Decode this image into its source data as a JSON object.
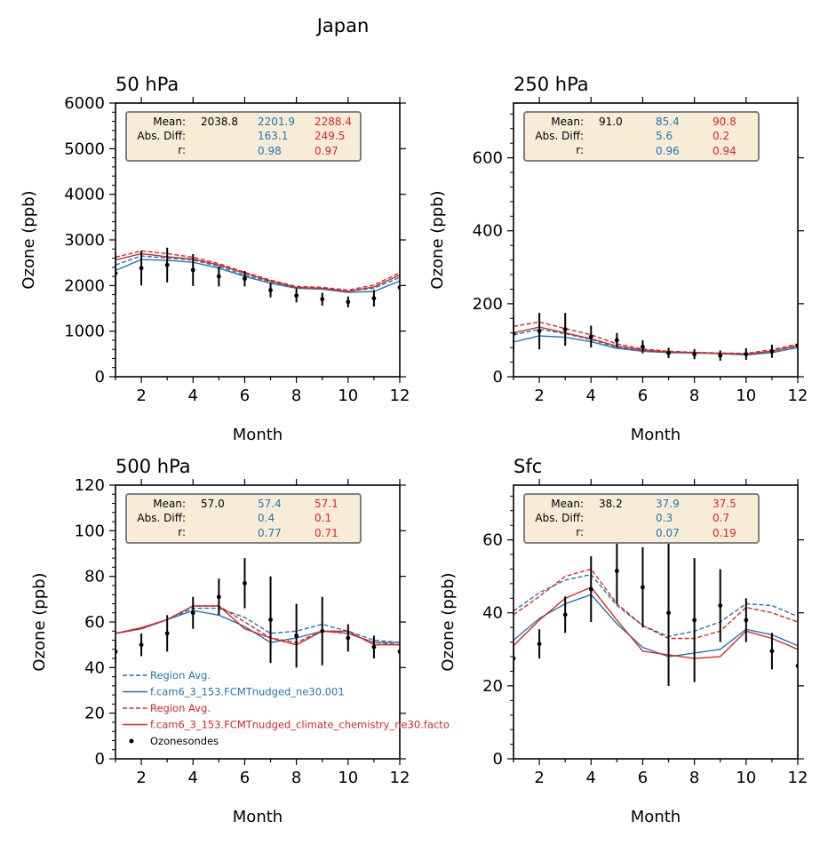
{
  "figure": {
    "suptitle": "Japan",
    "colors": {
      "obs": "#000000",
      "model1": "#1f77b4",
      "model2": "#d62728",
      "stats_box_bg": "#f8ecd7",
      "stats_box_edge": "#808080"
    }
  },
  "chart_data": [
    {
      "type": "line",
      "title": "50 hPa",
      "xlabel": "Month",
      "ylabel": "Ozone (ppb)",
      "xlim": [
        1,
        12
      ],
      "ylim": [
        0,
        6000
      ],
      "xticks": [
        2,
        4,
        6,
        8,
        10,
        12
      ],
      "yticks": [
        0,
        1000,
        2000,
        3000,
        4000,
        5000,
        6000
      ],
      "x": [
        1,
        2,
        3,
        4,
        5,
        6,
        7,
        8,
        9,
        10,
        11,
        12
      ],
      "observations": {
        "name": "Ozonesondes",
        "values": [
          2270,
          2380,
          2450,
          2340,
          2200,
          2150,
          1900,
          1780,
          1700,
          1640,
          1720,
          1960
        ],
        "errors": [
          450,
          380,
          380,
          350,
          220,
          170,
          160,
          150,
          140,
          120,
          180,
          0
        ]
      },
      "series": [
        {
          "name": "Region Avg.",
          "model": "model1",
          "style": "dashed",
          "values": [
            2450,
            2650,
            2600,
            2560,
            2420,
            2230,
            2080,
            1960,
            1940,
            1880,
            1940,
            2180
          ]
        },
        {
          "name": "f.cam6_3_153.FCMTnudged_ne30.001",
          "model": "model1",
          "style": "solid",
          "values": [
            2330,
            2570,
            2550,
            2510,
            2380,
            2200,
            2050,
            1940,
            1920,
            1850,
            1870,
            2100
          ]
        },
        {
          "name": "Region Avg.",
          "model": "model2",
          "style": "dashed",
          "values": [
            2620,
            2760,
            2700,
            2620,
            2480,
            2290,
            2120,
            1980,
            1960,
            1900,
            2010,
            2280
          ]
        },
        {
          "name": "f.cam6_3_153.FCMTnudged_climate_chemistry_ne30.facto",
          "model": "model2",
          "style": "solid",
          "values": [
            2560,
            2700,
            2630,
            2580,
            2450,
            2270,
            2100,
            1960,
            1940,
            1870,
            1970,
            2230
          ]
        }
      ],
      "stats": {
        "labels": [
          "Mean:",
          "Abs. Diff:",
          "r:"
        ],
        "obs": [
          "2038.8",
          "",
          ""
        ],
        "model1": [
          "2201.9",
          "163.1",
          "0.98"
        ],
        "model2": [
          "2288.4",
          "249.5",
          "0.97"
        ]
      },
      "legend": null
    },
    {
      "type": "line",
      "title": "250 hPa",
      "xlabel": "Month",
      "ylabel": "Ozone (ppb)",
      "xlim": [
        1,
        12
      ],
      "ylim": [
        0,
        750
      ],
      "xticks": [
        2,
        4,
        6,
        8,
        10,
        12
      ],
      "yticks": [
        0,
        200,
        400,
        600
      ],
      "x": [
        1,
        2,
        3,
        4,
        5,
        6,
        7,
        8,
        9,
        10,
        11,
        12
      ],
      "observations": {
        "name": "Ozonesondes",
        "values": [
          118,
          125,
          130,
          110,
          100,
          82,
          65,
          62,
          58,
          62,
          70,
          85
        ],
        "errors": [
          50,
          50,
          45,
          30,
          20,
          18,
          14,
          14,
          14,
          16,
          18,
          0
        ]
      },
      "series": [
        {
          "name": "Region Avg.",
          "model": "model1",
          "style": "dashed",
          "values": [
            115,
            130,
            118,
            102,
            80,
            72,
            68,
            66,
            64,
            62,
            70,
            84
          ]
        },
        {
          "name": "f.cam6_3_153.FCMTnudged_ne30.001",
          "model": "model1",
          "style": "solid",
          "values": [
            95,
            112,
            108,
            96,
            78,
            70,
            66,
            65,
            63,
            60,
            66,
            80
          ]
        },
        {
          "name": "Region Avg.",
          "model": "model2",
          "style": "dashed",
          "values": [
            138,
            150,
            132,
            115,
            90,
            76,
            70,
            67,
            65,
            64,
            74,
            90
          ]
        },
        {
          "name": "f.cam6_3_153.FCMTnudged_climate_chemistry_ne30.facto",
          "model": "model2",
          "style": "solid",
          "values": [
            120,
            136,
            120,
            104,
            84,
            73,
            68,
            66,
            64,
            62,
            70,
            86
          ]
        }
      ],
      "stats": {
        "labels": [
          "Mean:",
          "Abs. Diff:",
          "r:"
        ],
        "obs": [
          "91.0",
          "",
          ""
        ],
        "model1": [
          "85.4",
          "5.6",
          "0.96"
        ],
        "model2": [
          "90.8",
          "0.2",
          "0.94"
        ]
      },
      "legend": null
    },
    {
      "type": "line",
      "title": "500 hPa",
      "xlabel": "Month",
      "ylabel": "Ozone (ppb)",
      "xlim": [
        1,
        12
      ],
      "ylim": [
        0,
        120
      ],
      "xticks": [
        2,
        4,
        6,
        8,
        10,
        12
      ],
      "yticks": [
        0,
        20,
        40,
        60,
        80,
        100,
        120
      ],
      "x": [
        1,
        2,
        3,
        4,
        5,
        6,
        7,
        8,
        9,
        10,
        11,
        12
      ],
      "observations": {
        "name": "Ozonesondes",
        "values": [
          47,
          50,
          55,
          64,
          71,
          77,
          61,
          54,
          56,
          53,
          49,
          47
        ],
        "errors": [
          5,
          5,
          8,
          7,
          8,
          11,
          19,
          14,
          15,
          6,
          5,
          0
        ]
      },
      "series": [
        {
          "name": "Region Avg.",
          "model": "model1",
          "style": "dashed",
          "values": [
            55,
            57,
            61,
            66,
            66,
            62,
            55,
            56,
            59,
            56,
            52,
            51
          ]
        },
        {
          "name": "f.cam6_3_153.FCMTnudged_ne30.001",
          "model": "model1",
          "style": "solid",
          "values": [
            55,
            57,
            61,
            65,
            63,
            58,
            51,
            53,
            56,
            55,
            51,
            51
          ]
        },
        {
          "name": "Region Avg.",
          "model": "model2",
          "style": "dashed",
          "values": [
            55,
            57,
            61,
            67,
            67,
            60,
            53,
            51,
            56,
            55,
            51,
            50
          ]
        },
        {
          "name": "f.cam6_3_153.FCMTnudged_climate_chemistry_ne30.facto",
          "model": "model2",
          "style": "solid",
          "values": [
            55,
            57.5,
            61,
            67,
            67,
            57,
            53,
            50,
            56,
            56,
            50,
            50
          ]
        }
      ],
      "stats": {
        "labels": [
          "Mean:",
          "Abs. Diff:",
          "r:"
        ],
        "obs": [
          "57.0",
          "",
          ""
        ],
        "model1": [
          "57.4",
          "0.4",
          "0.77"
        ],
        "model2": [
          "57.1",
          "0.1",
          "0.71"
        ]
      },
      "legend": {
        "placement": "lower-left",
        "entries": [
          {
            "label": "Region Avg.",
            "model": "model1",
            "style": "dashed"
          },
          {
            "label": "f.cam6_3_153.FCMTnudged_ne30.001",
            "model": "model1",
            "style": "solid"
          },
          {
            "label": "Region Avg.",
            "model": "model2",
            "style": "dashed"
          },
          {
            "label": "f.cam6_3_153.FCMTnudged_climate_chemistry_ne30.facto",
            "model": "model2",
            "style": "solid"
          },
          {
            "label": "Ozonesondes",
            "model": "obs",
            "style": "marker"
          }
        ]
      }
    },
    {
      "type": "line",
      "title": "Sfc",
      "xlabel": "Month",
      "ylabel": "Ozone (ppb)",
      "xlim": [
        1,
        12
      ],
      "ylim": [
        0,
        75
      ],
      "xticks": [
        2,
        4,
        6,
        8,
        10,
        12
      ],
      "yticks": [
        0,
        20,
        40,
        60
      ],
      "x": [
        1,
        2,
        3,
        4,
        5,
        6,
        7,
        8,
        9,
        10,
        11,
        12
      ],
      "observations": {
        "name": "Ozonesondes",
        "values": [
          27.5,
          31.5,
          39.5,
          46.5,
          51.5,
          47,
          40,
          38,
          42,
          38,
          29.5,
          25.5
        ],
        "errors": [
          4,
          4,
          5,
          9,
          9,
          11,
          20,
          17,
          10,
          6,
          5,
          0
        ]
      },
      "series": [
        {
          "name": "Region Avg.",
          "model": "model1",
          "style": "dashed",
          "values": [
            40.5,
            45.5,
            49,
            50.5,
            42,
            36.5,
            33.5,
            35,
            37.5,
            42.5,
            42,
            39
          ]
        },
        {
          "name": "f.cam6_3_153.FCMTnudged_ne30.001",
          "model": "model1",
          "style": "solid",
          "values": [
            32.5,
            38.5,
            42.5,
            45,
            37,
            30.5,
            28,
            29,
            30,
            35.5,
            34,
            31
          ]
        },
        {
          "name": "Region Avg.",
          "model": "model2",
          "style": "dashed",
          "values": [
            39.5,
            44.5,
            50,
            52,
            42.5,
            36.5,
            33,
            33,
            35,
            41.5,
            40,
            37.5
          ]
        },
        {
          "name": "f.cam6_3_153.FCMTnudged_climate_chemistry_ne30.facto",
          "model": "model2",
          "style": "solid",
          "values": [
            31,
            38,
            44,
            47,
            38,
            29.5,
            28.5,
            27.5,
            28,
            35,
            33,
            30
          ]
        }
      ],
      "stats": {
        "labels": [
          "Mean:",
          "Abs. Diff:",
          "r:"
        ],
        "obs": [
          "38.2",
          "",
          ""
        ],
        "model1": [
          "37.9",
          "0.3",
          "0.07"
        ],
        "model2": [
          "37.5",
          "0.7",
          "0.19"
        ]
      },
      "legend": null
    }
  ]
}
